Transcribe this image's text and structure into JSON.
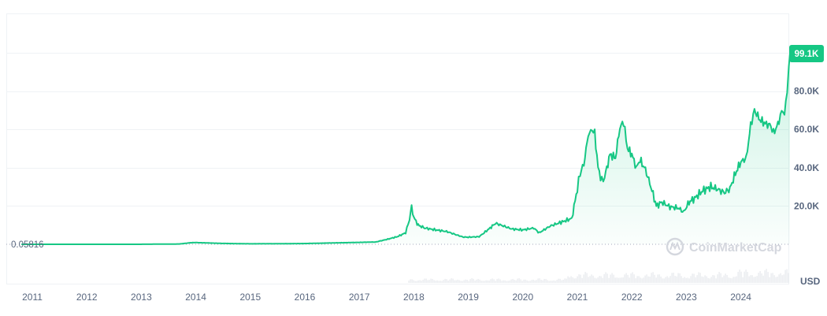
{
  "chart_data": {
    "type": "area",
    "title": "",
    "xlabel": "",
    "ylabel": "",
    "unit": "USD",
    "watermark": "CoinMarketCap",
    "x_tick_labels": [
      "2011",
      "2012",
      "2013",
      "2014",
      "2015",
      "2016",
      "2017",
      "2018",
      "2019",
      "2020",
      "2021",
      "2022",
      "2023",
      "2024"
    ],
    "y_tick_values": [
      20000,
      40000,
      60000,
      80000
    ],
    "y_tick_labels": [
      "20.0K",
      "40.0K",
      "60.0K",
      "80.0K"
    ],
    "ylim": [
      0,
      120000
    ],
    "xlim": [
      2010.8,
      2024.9
    ],
    "current_price_label": "99.1K",
    "current_price": 99100,
    "baseline_label": "0.05816",
    "baseline_value": 0.05816,
    "line_color": "#16c784",
    "grid": true,
    "series": [
      {
        "x": [
          2010.8,
          2012.0,
          2013.0,
          2013.7,
          2013.9,
          2014.0,
          2014.5,
          2015.0,
          2015.5,
          2016.0,
          2016.5,
          2017.0,
          2017.3,
          2017.5,
          2017.7,
          2017.85,
          2017.92,
          2017.96,
          2018.0,
          2018.08,
          2018.2,
          2018.4,
          2018.6,
          2018.9,
          2019.0,
          2019.2,
          2019.4,
          2019.5,
          2019.6,
          2019.8,
          2020.0,
          2020.2,
          2020.3,
          2020.5,
          2020.7,
          2020.9,
          2021.0,
          2021.05,
          2021.12,
          2021.2,
          2021.27,
          2021.32,
          2021.38,
          2021.45,
          2021.5,
          2021.6,
          2021.7,
          2021.78,
          2021.85,
          2021.92,
          2022.0,
          2022.08,
          2022.15,
          2022.25,
          2022.35,
          2022.45,
          2022.55,
          2022.7,
          2022.85,
          2022.95,
          2023.05,
          2023.15,
          2023.3,
          2023.45,
          2023.55,
          2023.7,
          2023.8,
          2023.9,
          2024.0,
          2024.1,
          2024.18,
          2024.25,
          2024.35,
          2024.45,
          2024.55,
          2024.6,
          2024.7,
          2024.75,
          2024.8,
          2024.85,
          2024.88,
          2024.9
        ],
        "y": [
          0.06,
          5,
          20,
          150,
          800,
          900,
          450,
          250,
          300,
          400,
          700,
          1000,
          1200,
          2500,
          4000,
          6000,
          13000,
          19500,
          14000,
          10000,
          8500,
          7500,
          6700,
          3800,
          3700,
          4000,
          8500,
          11000,
          10000,
          8000,
          7500,
          8500,
          6000,
          9500,
          11500,
          13500,
          29000,
          37000,
          42000,
          57000,
          60000,
          58000,
          40000,
          33000,
          35000,
          47000,
          45000,
          61000,
          64000,
          50000,
          47000,
          40000,
          44000,
          39000,
          30000,
          20000,
          22000,
          19500,
          19000,
          16800,
          22000,
          24000,
          28000,
          30000,
          29000,
          27000,
          29000,
          37000,
          43000,
          45000,
          62000,
          70000,
          65000,
          63000,
          62000,
          58000,
          64000,
          70000,
          68000,
          80000,
          93000,
          99100
        ]
      }
    ]
  }
}
